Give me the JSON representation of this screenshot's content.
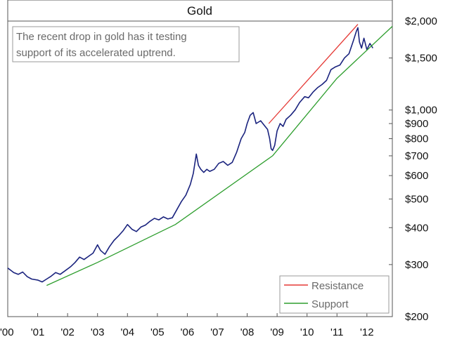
{
  "chart_data": {
    "type": "line",
    "title": "Gold",
    "annotation": [
      "The recent drop in gold has it testing",
      "support of its accelerated uptrend."
    ],
    "xlabel": "",
    "ylabel": "",
    "y_scale": "log",
    "ylim": [
      200,
      2000
    ],
    "xlim": [
      2000.0,
      2012.85
    ],
    "grid": false,
    "legend_position": "bottom-right",
    "x_tick_values": [
      2000,
      2001,
      2002,
      2003,
      2004,
      2005,
      2006,
      2007,
      2008,
      2009,
      2010,
      2011,
      2012
    ],
    "x_tick_labels": [
      "'00",
      "'01",
      "'02",
      "'03",
      "'04",
      "'05",
      "'06",
      "'07",
      "'08",
      "'09",
      "'10",
      "'11",
      "'12"
    ],
    "y_tick_values": [
      2000,
      1500,
      1000,
      900,
      800,
      700,
      600,
      500,
      400,
      300,
      200
    ],
    "y_tick_labels": [
      "$2,000",
      "$1,500",
      "$1,000",
      "$900",
      "$800",
      "$700",
      "$600",
      "$500",
      "$400",
      "$300",
      "$200"
    ],
    "series": [
      {
        "name": "",
        "color": "#1a237e",
        "x": [
          2000.0,
          2000.1,
          2000.2,
          2000.35,
          2000.5,
          2000.65,
          2000.8,
          2001.0,
          2001.15,
          2001.3,
          2001.45,
          2001.6,
          2001.75,
          2001.9,
          2002.1,
          2002.25,
          2002.4,
          2002.55,
          2002.7,
          2002.85,
          2003.0,
          2003.1,
          2003.25,
          2003.4,
          2003.55,
          2003.7,
          2003.85,
          2004.0,
          2004.15,
          2004.3,
          2004.45,
          2004.6,
          2004.75,
          2004.9,
          2005.05,
          2005.2,
          2005.35,
          2005.5,
          2005.65,
          2005.8,
          2005.95,
          2006.1,
          2006.2,
          2006.3,
          2006.37,
          2006.45,
          2006.55,
          2006.65,
          2006.75,
          2006.9,
          2007.05,
          2007.2,
          2007.35,
          2007.5,
          2007.65,
          2007.8,
          2007.92,
          2008.0,
          2008.1,
          2008.2,
          2008.3,
          2008.45,
          2008.6,
          2008.68,
          2008.75,
          2008.8,
          2008.85,
          2008.92,
          2009.0,
          2009.1,
          2009.2,
          2009.3,
          2009.45,
          2009.6,
          2009.75,
          2009.92,
          2010.05,
          2010.2,
          2010.35,
          2010.5,
          2010.65,
          2010.8,
          2010.95,
          2011.1,
          2011.25,
          2011.4,
          2011.55,
          2011.65,
          2011.7,
          2011.75,
          2011.82,
          2011.9,
          2012.0,
          2012.1,
          2012.2
        ],
        "values": [
          292,
          287,
          282,
          278,
          283,
          273,
          268,
          266,
          262,
          268,
          274,
          282,
          278,
          285,
          295,
          305,
          318,
          312,
          320,
          328,
          350,
          335,
          325,
          345,
          362,
          375,
          390,
          410,
          395,
          388,
          402,
          408,
          420,
          430,
          425,
          435,
          428,
          432,
          460,
          490,
          515,
          560,
          610,
          710,
          650,
          630,
          615,
          630,
          620,
          630,
          660,
          670,
          650,
          665,
          720,
          800,
          840,
          900,
          960,
          980,
          900,
          920,
          880,
          860,
          800,
          740,
          730,
          760,
          850,
          900,
          880,
          930,
          960,
          1000,
          1060,
          1110,
          1100,
          1150,
          1190,
          1220,
          1260,
          1370,
          1400,
          1420,
          1500,
          1550,
          1720,
          1850,
          1900,
          1700,
          1620,
          1750,
          1600,
          1680,
          1620
        ]
      },
      {
        "name": "Resistance",
        "color": "#e53935",
        "x": [
          2008.72,
          2011.7
        ],
        "values": [
          900,
          1950
        ]
      },
      {
        "name": "Support",
        "color": "#2e9e2e",
        "x": [
          2001.3,
          2003.0,
          2005.6,
          2008.85,
          2011.0,
          2012.85
        ],
        "values": [
          255,
          305,
          410,
          700,
          1280,
          1920
        ]
      }
    ]
  }
}
